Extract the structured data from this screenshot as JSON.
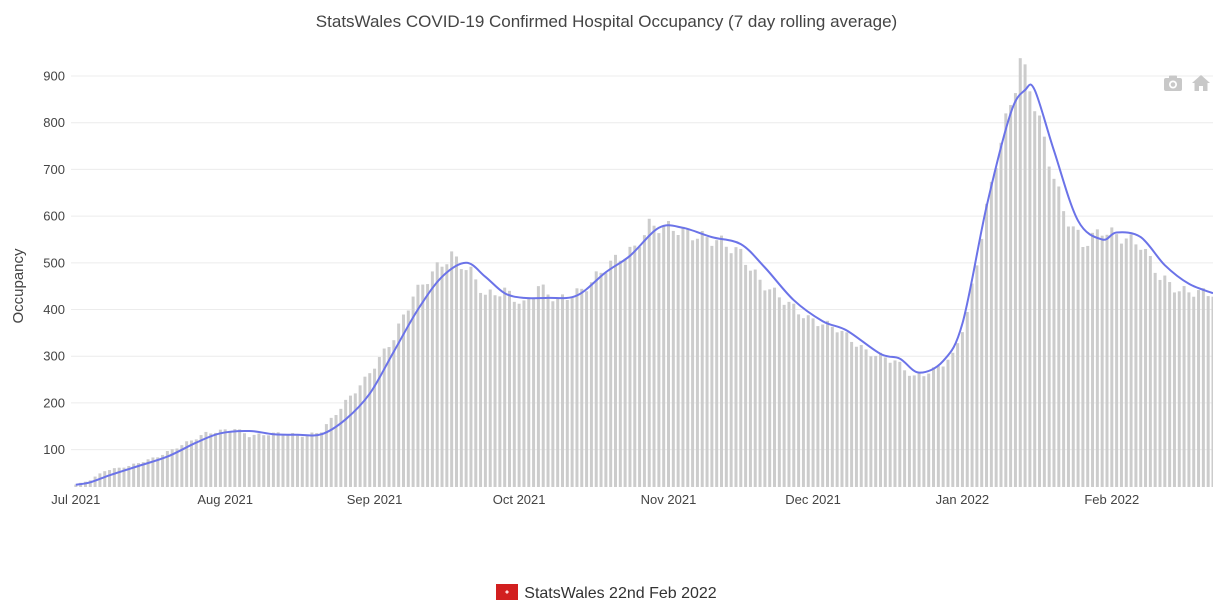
{
  "chart_data": {
    "type": "bar",
    "title": "StatsWales COVID-19 Confirmed Hospital Occupancy (7 day rolling average)",
    "ylabel": "Occupancy",
    "xlabel": "",
    "ylim": [
      20,
      930
    ],
    "y_ticks": [
      100,
      200,
      300,
      400,
      500,
      600,
      700,
      800,
      900
    ],
    "x_ticks": [
      {
        "date": "2021-07-01",
        "label": "Jul 2021"
      },
      {
        "date": "2021-08-01",
        "label": "Aug 2021"
      },
      {
        "date": "2021-09-01",
        "label": "Sep 2021"
      },
      {
        "date": "2021-10-01",
        "label": "Oct 2021"
      },
      {
        "date": "2021-11-01",
        "label": "Nov 2021"
      },
      {
        "date": "2021-12-01",
        "label": "Dec 2021"
      },
      {
        "date": "2022-01-01",
        "label": "Jan 2022"
      },
      {
        "date": "2022-02-01",
        "label": "Feb 2022"
      }
    ],
    "x_range": [
      "2021-06-30",
      "2022-02-22"
    ],
    "grid": true,
    "bar_color": "#cccccc",
    "line_color": "#6b73e8",
    "bar_keypoints": [
      [
        "2021-07-01",
        25
      ],
      [
        "2021-07-04",
        35
      ],
      [
        "2021-07-07",
        55
      ],
      [
        "2021-07-12",
        65
      ],
      [
        "2021-07-18",
        85
      ],
      [
        "2021-07-24",
        115
      ],
      [
        "2021-07-28",
        135
      ],
      [
        "2021-08-03",
        145
      ],
      [
        "2021-08-06",
        130
      ],
      [
        "2021-08-12",
        135
      ],
      [
        "2021-08-18",
        130
      ],
      [
        "2021-08-21",
        140
      ],
      [
        "2021-08-25",
        190
      ],
      [
        "2021-08-30",
        250
      ],
      [
        "2021-09-05",
        340
      ],
      [
        "2021-09-09",
        430
      ],
      [
        "2021-09-14",
        490
      ],
      [
        "2021-09-17",
        515
      ],
      [
        "2021-09-21",
        480
      ],
      [
        "2021-09-24",
        430
      ],
      [
        "2021-09-28",
        440
      ],
      [
        "2021-10-02",
        410
      ],
      [
        "2021-10-05",
        450
      ],
      [
        "2021-10-09",
        420
      ],
      [
        "2021-10-14",
        440
      ],
      [
        "2021-10-20",
        500
      ],
      [
        "2021-10-25",
        530
      ],
      [
        "2021-10-28",
        580
      ],
      [
        "2021-11-02",
        575
      ],
      [
        "2021-11-06",
        560
      ],
      [
        "2021-11-12",
        545
      ],
      [
        "2021-11-16",
        520
      ],
      [
        "2021-11-20",
        460
      ],
      [
        "2021-11-25",
        420
      ],
      [
        "2021-11-30",
        380
      ],
      [
        "2021-12-06",
        360
      ],
      [
        "2021-12-12",
        310
      ],
      [
        "2021-12-18",
        290
      ],
      [
        "2021-12-22",
        255
      ],
      [
        "2021-12-26",
        270
      ],
      [
        "2021-12-30",
        300
      ],
      [
        "2022-01-02",
        390
      ],
      [
        "2022-01-05",
        560
      ],
      [
        "2022-01-08",
        720
      ],
      [
        "2022-01-11",
        840
      ],
      [
        "2022-01-13",
        930
      ],
      [
        "2022-01-15",
        880
      ],
      [
        "2022-01-18",
        760
      ],
      [
        "2022-01-22",
        610
      ],
      [
        "2022-01-26",
        540
      ],
      [
        "2022-01-30",
        570
      ],
      [
        "2022-02-03",
        555
      ],
      [
        "2022-02-07",
        540
      ],
      [
        "2022-02-11",
        470
      ],
      [
        "2022-02-15",
        440
      ],
      [
        "2022-02-22",
        435
      ]
    ],
    "rolling_average": [
      [
        "2021-07-01",
        25
      ],
      [
        "2021-07-04",
        30
      ],
      [
        "2021-07-08",
        45
      ],
      [
        "2021-07-14",
        65
      ],
      [
        "2021-07-20",
        85
      ],
      [
        "2021-07-26",
        115
      ],
      [
        "2021-07-31",
        135
      ],
      [
        "2021-08-06",
        140
      ],
      [
        "2021-08-11",
        133
      ],
      [
        "2021-08-16",
        132
      ],
      [
        "2021-08-21",
        133
      ],
      [
        "2021-08-26",
        165
      ],
      [
        "2021-08-31",
        220
      ],
      [
        "2021-09-05",
        310
      ],
      [
        "2021-09-10",
        400
      ],
      [
        "2021-09-15",
        470
      ],
      [
        "2021-09-20",
        500
      ],
      [
        "2021-09-24",
        470
      ],
      [
        "2021-09-28",
        435
      ],
      [
        "2021-10-02",
        425
      ],
      [
        "2021-10-07",
        425
      ],
      [
        "2021-10-13",
        430
      ],
      [
        "2021-10-19",
        480
      ],
      [
        "2021-10-24",
        515
      ],
      [
        "2021-10-30",
        575
      ],
      [
        "2021-11-04",
        575
      ],
      [
        "2021-11-10",
        555
      ],
      [
        "2021-11-16",
        540
      ],
      [
        "2021-11-21",
        490
      ],
      [
        "2021-11-27",
        420
      ],
      [
        "2021-12-03",
        375
      ],
      [
        "2021-12-08",
        355
      ],
      [
        "2021-12-15",
        305
      ],
      [
        "2021-12-19",
        295
      ],
      [
        "2021-12-23",
        265
      ],
      [
        "2021-12-28",
        290
      ],
      [
        "2022-01-01",
        370
      ],
      [
        "2022-01-06",
        620
      ],
      [
        "2022-01-11",
        820
      ],
      [
        "2022-01-14",
        870
      ],
      [
        "2022-01-16",
        870
      ],
      [
        "2022-01-20",
        740
      ],
      [
        "2022-01-25",
        590
      ],
      [
        "2022-01-30",
        550
      ],
      [
        "2022-02-02",
        565
      ],
      [
        "2022-02-07",
        555
      ],
      [
        "2022-02-12",
        495
      ],
      [
        "2022-02-17",
        455
      ],
      [
        "2022-02-22",
        435
      ]
    ]
  },
  "toolbar": {
    "camera_icon": "camera-icon",
    "home_icon": "home-icon"
  },
  "footer": {
    "text": "StatsWales 22nd Feb 2022",
    "logo": "statswales-dragon-logo"
  }
}
